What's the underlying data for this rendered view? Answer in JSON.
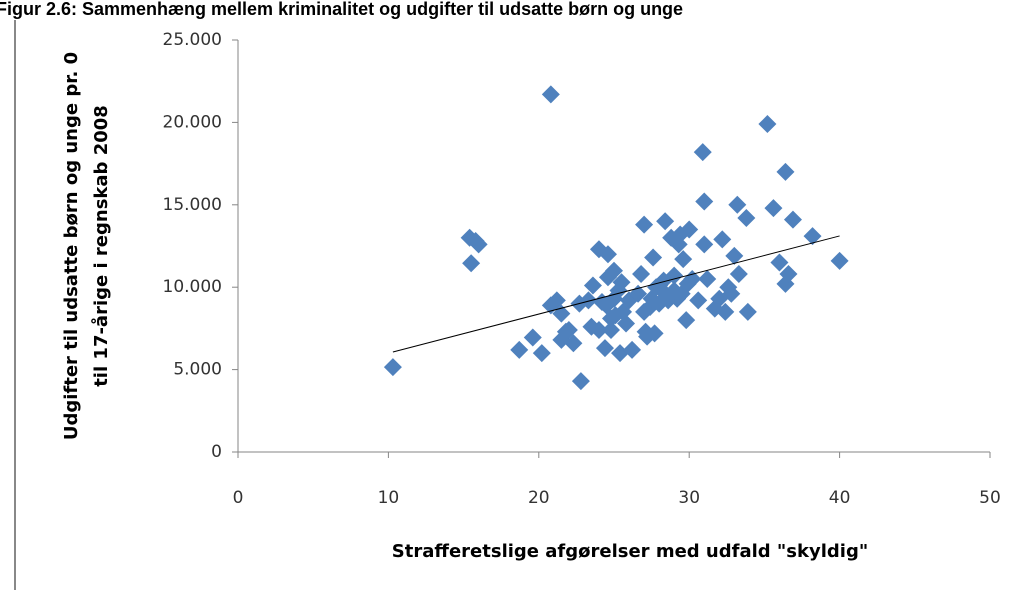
{
  "chart_data": {
    "type": "scatter",
    "title": "Figur 2.6: Sammenhæng mellem kriminalitet og udgifter til udsatte børn og unge",
    "xlabel": "Strafferetslige afgørelser med udfald \"skyldig\"",
    "ylabel": [
      "Udgifter til udsatte børn og unge pr. 0",
      "til 17-årige i regnskab 2008"
    ],
    "xlim": [
      0,
      50
    ],
    "xticks": [
      0,
      10,
      20,
      30,
      40,
      50
    ],
    "ylim": [
      0,
      25000
    ],
    "yticks": [
      0,
      {
        "value": 5000,
        "label": "5.000"
      },
      {
        "value": 10000,
        "label": "10.000"
      },
      {
        "value": 15000,
        "label": "15.000"
      },
      {
        "value": 20000,
        "label": "20.000"
      },
      {
        "value": 25000,
        "label": "25.000"
      }
    ],
    "grid": false,
    "color": "#4f81bd",
    "x": [
      10.3,
      15.4,
      15.5,
      15.8,
      16.0,
      18.7,
      19.6,
      20.2,
      20.8,
      20.8,
      21.2,
      21.5,
      21.5,
      21.8,
      22.0,
      22.3,
      22.8,
      22.7,
      23.5,
      23.6,
      24.0,
      24.0,
      24.2,
      24.4,
      24.6,
      24.6,
      24.8,
      24.8,
      25.0,
      25.0,
      25.1,
      25.3,
      25.4,
      25.6,
      25.8,
      26.0,
      26.2,
      26.6,
      27.0,
      27.0,
      27.1,
      27.2,
      27.4,
      27.5,
      27.6,
      27.7,
      27.8,
      28.0,
      28.2,
      28.3,
      28.4,
      28.6,
      28.8,
      29.0,
      29.2,
      29.3,
      29.4,
      29.5,
      29.6,
      29.8,
      29.9,
      30.0,
      30.2,
      30.6,
      30.9,
      31.0,
      31.0,
      31.2,
      31.7,
      32.0,
      32.2,
      32.4,
      32.6,
      32.8,
      33.0,
      33.2,
      33.3,
      33.8,
      33.9,
      35.2,
      35.6,
      36.0,
      36.4,
      36.4,
      36.6,
      36.9,
      38.2,
      40.0,
      23.3,
      26.8,
      28.0,
      24.5,
      25.5,
      29.0
    ],
    "y": [
      5150,
      13000,
      11450,
      12800,
      12600,
      6200,
      6950,
      6000,
      21700,
      8900,
      9200,
      8400,
      6800,
      7300,
      7400,
      6600,
      4300,
      9000,
      7600,
      10100,
      12300,
      7400,
      9100,
      6300,
      12000,
      10600,
      7400,
      8100,
      11000,
      9300,
      8300,
      9800,
      6000,
      8500,
      7800,
      9200,
      6200,
      9600,
      13800,
      8500,
      7300,
      7000,
      8800,
      9300,
      11800,
      7200,
      10000,
      9000,
      9800,
      10400,
      14000,
      9200,
      13000,
      10700,
      9300,
      12600,
      13200,
      9600,
      11700,
      8000,
      10200,
      13500,
      10500,
      9200,
      18200,
      15200,
      12600,
      10500,
      8700,
      9300,
      12900,
      8500,
      10000,
      9600,
      11900,
      15000,
      10800,
      14200,
      8500,
      19900,
      14800,
      11500,
      17000,
      10200,
      10800,
      14100,
      13100,
      11600,
      9200,
      10800,
      10100,
      8900,
      10300,
      9800
    ],
    "trendline": {
      "x": [
        10.3,
        40
      ],
      "y": [
        6070,
        13110
      ],
      "color": "#000000"
    }
  }
}
